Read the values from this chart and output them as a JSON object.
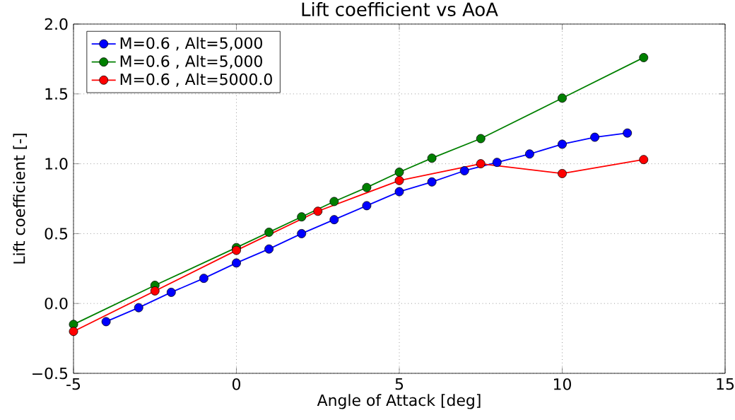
{
  "chart_data": {
    "type": "line",
    "title": "Lift coefficient vs AoA",
    "xlabel": "Angle of Attack [deg]",
    "ylabel": "Lift coefficient [-]",
    "xlim": [
      -5,
      15
    ],
    "ylim": [
      -0.5,
      2.0
    ],
    "xticks": [
      -5,
      0,
      5,
      10,
      15
    ],
    "yticks": [
      {
        "value": -0.5,
        "label": "−0.5"
      },
      {
        "value": 0,
        "label": "0.0"
      },
      {
        "value": 0.5,
        "label": "0.5"
      },
      {
        "value": 1.0,
        "label": "1.0"
      },
      {
        "value": 1.5,
        "label": "1.5"
      },
      {
        "value": 2.0,
        "label": "2.0"
      }
    ],
    "grid": true,
    "legend": "top left",
    "marker": "circle",
    "line_style": "solid",
    "series": [
      {
        "name": "M=0.6 , Alt=5,000",
        "color": "#0000ff",
        "x": [
          -4,
          -3,
          -2,
          -1,
          0,
          1,
          2,
          3,
          4,
          5,
          6,
          7,
          8,
          9,
          10,
          11,
          12
        ],
        "values": [
          -0.13,
          -0.03,
          0.08,
          0.18,
          0.29,
          0.39,
          0.5,
          0.6,
          0.7,
          0.8,
          0.87,
          0.95,
          1.01,
          1.07,
          1.14,
          1.19,
          1.22
        ]
      },
      {
        "name": "M=0.6 , Alt=5,000",
        "color": "#008000",
        "x": [
          -5,
          -2.5,
          0,
          1,
          2,
          3,
          4,
          5,
          6,
          7.5,
          10,
          12.5
        ],
        "values": [
          -0.15,
          0.13,
          0.4,
          0.51,
          0.62,
          0.73,
          0.83,
          0.94,
          1.04,
          1.18,
          1.47,
          1.76
        ]
      },
      {
        "name": "M=0.6 , Alt=5000.0",
        "color": "#ff0000",
        "x": [
          -5,
          -2.5,
          0,
          2.5,
          5,
          7.5,
          10,
          12.5
        ],
        "values": [
          -0.2,
          0.09,
          0.38,
          0.66,
          0.88,
          1.0,
          0.93,
          1.03
        ]
      }
    ]
  }
}
